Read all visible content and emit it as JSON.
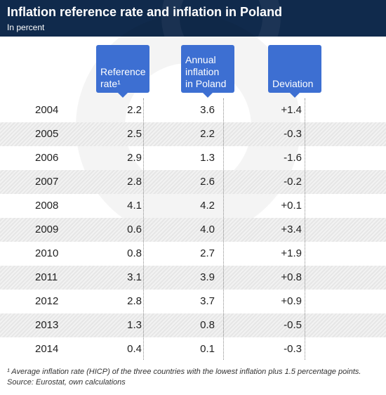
{
  "header": {
    "title": "Inflation reference rate and inflation in Poland",
    "subtitle": "In percent"
  },
  "columns": [
    {
      "label": "Reference\nrate¹"
    },
    {
      "label": "Annual\ninflation\nin Poland"
    },
    {
      "label": "Deviation"
    }
  ],
  "chart_data": {
    "type": "table",
    "title": "Inflation reference rate and inflation in Poland",
    "subtitle": "In percent",
    "columns": [
      "Reference rate¹",
      "Annual inflation in Poland",
      "Deviation"
    ],
    "rows": [
      {
        "year": "2004",
        "reference_rate": "2.2",
        "annual_inflation": "3.6",
        "deviation": "+1.4"
      },
      {
        "year": "2005",
        "reference_rate": "2.5",
        "annual_inflation": "2.2",
        "deviation": "-0.3"
      },
      {
        "year": "2006",
        "reference_rate": "2.9",
        "annual_inflation": "1.3",
        "deviation": "-1.6"
      },
      {
        "year": "2007",
        "reference_rate": "2.8",
        "annual_inflation": "2.6",
        "deviation": "-0.2"
      },
      {
        "year": "2008",
        "reference_rate": "4.1",
        "annual_inflation": "4.2",
        "deviation": "+0.1"
      },
      {
        "year": "2009",
        "reference_rate": "0.6",
        "annual_inflation": "4.0",
        "deviation": "+3.4"
      },
      {
        "year": "2010",
        "reference_rate": "0.8",
        "annual_inflation": "2.7",
        "deviation": "+1.9"
      },
      {
        "year": "2011",
        "reference_rate": "3.1",
        "annual_inflation": "3.9",
        "deviation": "+0.8"
      },
      {
        "year": "2012",
        "reference_rate": "2.8",
        "annual_inflation": "3.7",
        "deviation": "+0.9"
      },
      {
        "year": "2013",
        "reference_rate": "1.3",
        "annual_inflation": "0.8",
        "deviation": "-0.5"
      },
      {
        "year": "2014",
        "reference_rate": "0.4",
        "annual_inflation": "0.1",
        "deviation": "-0.3"
      }
    ]
  },
  "footnote": "¹ Average inflation rate (HICP) of the three countries with the lowest inflation plus 1.5 percentage points. Source: Eurostat, own calculations",
  "colors": {
    "header_bg": "#102a4c",
    "column_header_bg": "#3d6fd2",
    "stripe": "#e6e6e6"
  }
}
